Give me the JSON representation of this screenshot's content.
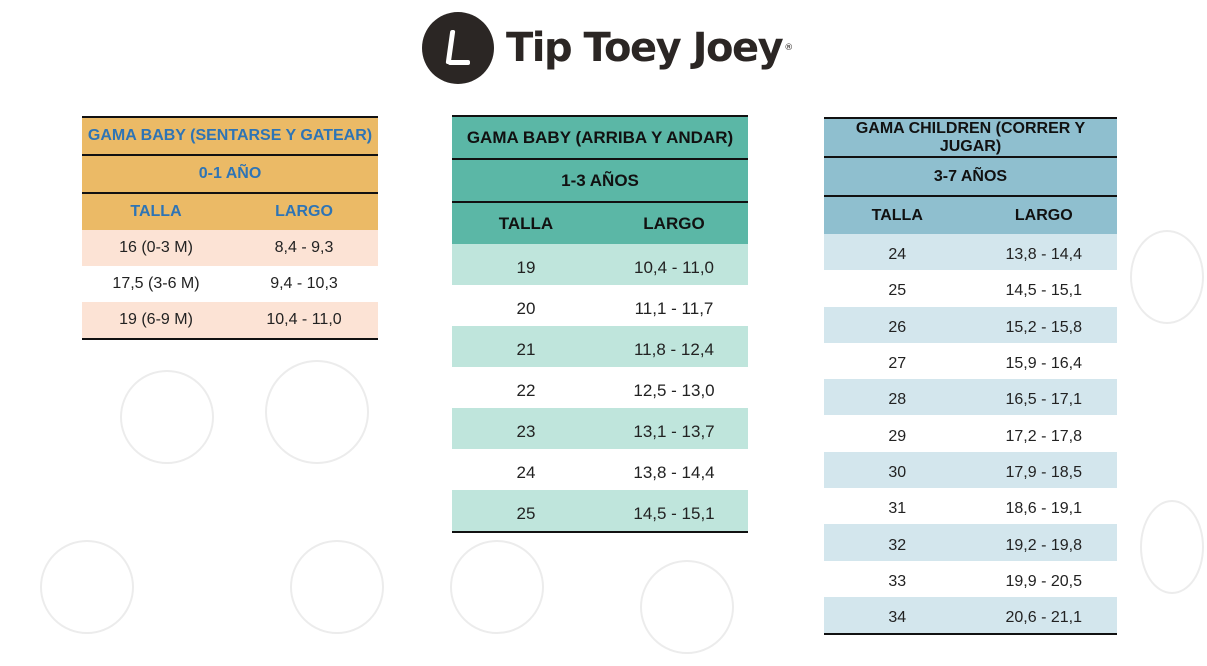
{
  "brand": {
    "name": "Tip Toey Joey",
    "registered": "®"
  },
  "tables": [
    {
      "title": "GAMA BABY (SENTARSE Y GATEAR)",
      "age": "0-1 AÑO",
      "headers": [
        "TALLA",
        "LARGO"
      ],
      "rows": [
        [
          "16 (0-3 M)",
          "8,4 - 9,3"
        ],
        [
          "17,5 (3-6 M)",
          "9,4 - 10,3"
        ],
        [
          "19 (6-9 M)",
          "10,4 - 11,0"
        ]
      ]
    },
    {
      "title": "GAMA BABY (ARRIBA Y ANDAR)",
      "age": "1-3 AÑOS",
      "headers": [
        "TALLA",
        "LARGO"
      ],
      "rows": [
        [
          "19",
          "10,4 - 11,0"
        ],
        [
          "20",
          "11,1 - 11,7"
        ],
        [
          "21",
          "11,8 - 12,4"
        ],
        [
          "22",
          "12,5 - 13,0"
        ],
        [
          "23",
          "13,1 - 13,7"
        ],
        [
          "24",
          "13,8 - 14,4"
        ],
        [
          "25",
          "14,5 - 15,1"
        ]
      ]
    },
    {
      "title": "GAMA CHILDREN (CORRER Y JUGAR)",
      "age": "3-7 AÑOS",
      "headers": [
        "TALLA",
        "LARGO"
      ],
      "rows": [
        [
          "24",
          "13,8 - 14,4"
        ],
        [
          "25",
          "14,5 - 15,1"
        ],
        [
          "26",
          "15,2 - 15,8"
        ],
        [
          "27",
          "15,9 - 16,4"
        ],
        [
          "28",
          "16,5 - 17,1"
        ],
        [
          "29",
          "17,2 - 17,8"
        ],
        [
          "30",
          "17,9 - 18,5"
        ],
        [
          "31",
          "18,6 - 19,1"
        ],
        [
          "32",
          "19,2 - 19,8"
        ],
        [
          "33",
          "19,9 - 20,5"
        ],
        [
          "34",
          "20,6 - 21,1"
        ]
      ]
    }
  ],
  "colors": {
    "orange": "#ebba66",
    "teal": "#5bb7a6",
    "blue": "#8fbfcf",
    "title_blue": "#2e74b5"
  }
}
